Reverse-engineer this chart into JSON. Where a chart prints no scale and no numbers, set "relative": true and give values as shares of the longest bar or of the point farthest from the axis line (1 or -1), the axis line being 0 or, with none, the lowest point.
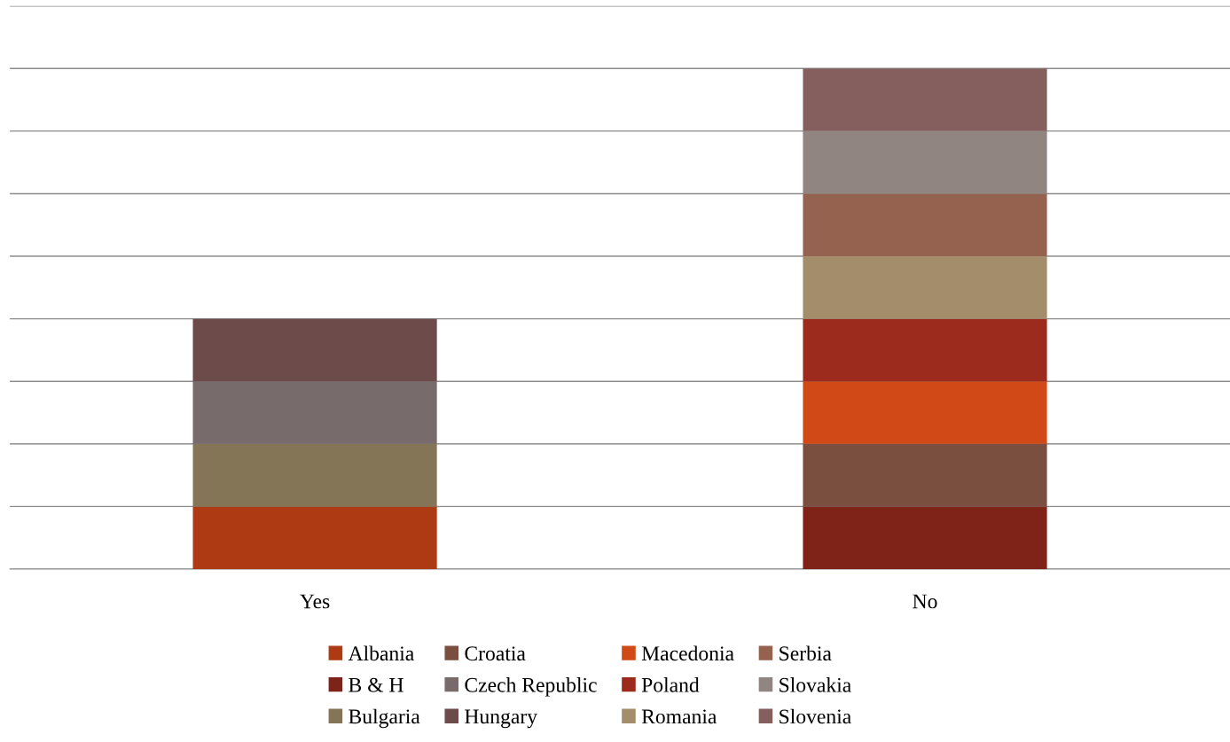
{
  "chart_data": {
    "type": "bar",
    "stacked": true,
    "relative": true,
    "categories": [
      "Yes",
      "No"
    ],
    "grid": "y",
    "legend": "bottom",
    "tick_labels": "x",
    "series": [
      {
        "name": "Albania",
        "color": "#ae3a13",
        "values": [
          0.125,
          0
        ]
      },
      {
        "name": "B & H",
        "color": "#7f2218",
        "values": [
          0,
          0.125
        ]
      },
      {
        "name": "Bulgaria",
        "color": "#847556",
        "values": [
          0.125,
          0
        ]
      },
      {
        "name": "Croatia",
        "color": "#7a4f40",
        "values": [
          0,
          0.125
        ]
      },
      {
        "name": "Czech Republic",
        "color": "#776b6b",
        "values": [
          0.125,
          0
        ]
      },
      {
        "name": "Hungary",
        "color": "#6d4b4a",
        "values": [
          0.125,
          0
        ]
      },
      {
        "name": "Macedonia",
        "color": "#d14917",
        "values": [
          0,
          0.125
        ]
      },
      {
        "name": "Poland",
        "color": "#9c2b1e",
        "values": [
          0,
          0.125
        ]
      },
      {
        "name": "Romania",
        "color": "#a38d6b",
        "values": [
          0,
          0.125
        ]
      },
      {
        "name": "Serbia",
        "color": "#95624f",
        "values": [
          0,
          0.125
        ]
      },
      {
        "name": "Slovakia",
        "color": "#908581",
        "values": [
          0,
          0.125
        ]
      },
      {
        "name": "Slovenia",
        "color": "#855f5e",
        "values": [
          0,
          0.125
        ]
      }
    ]
  }
}
